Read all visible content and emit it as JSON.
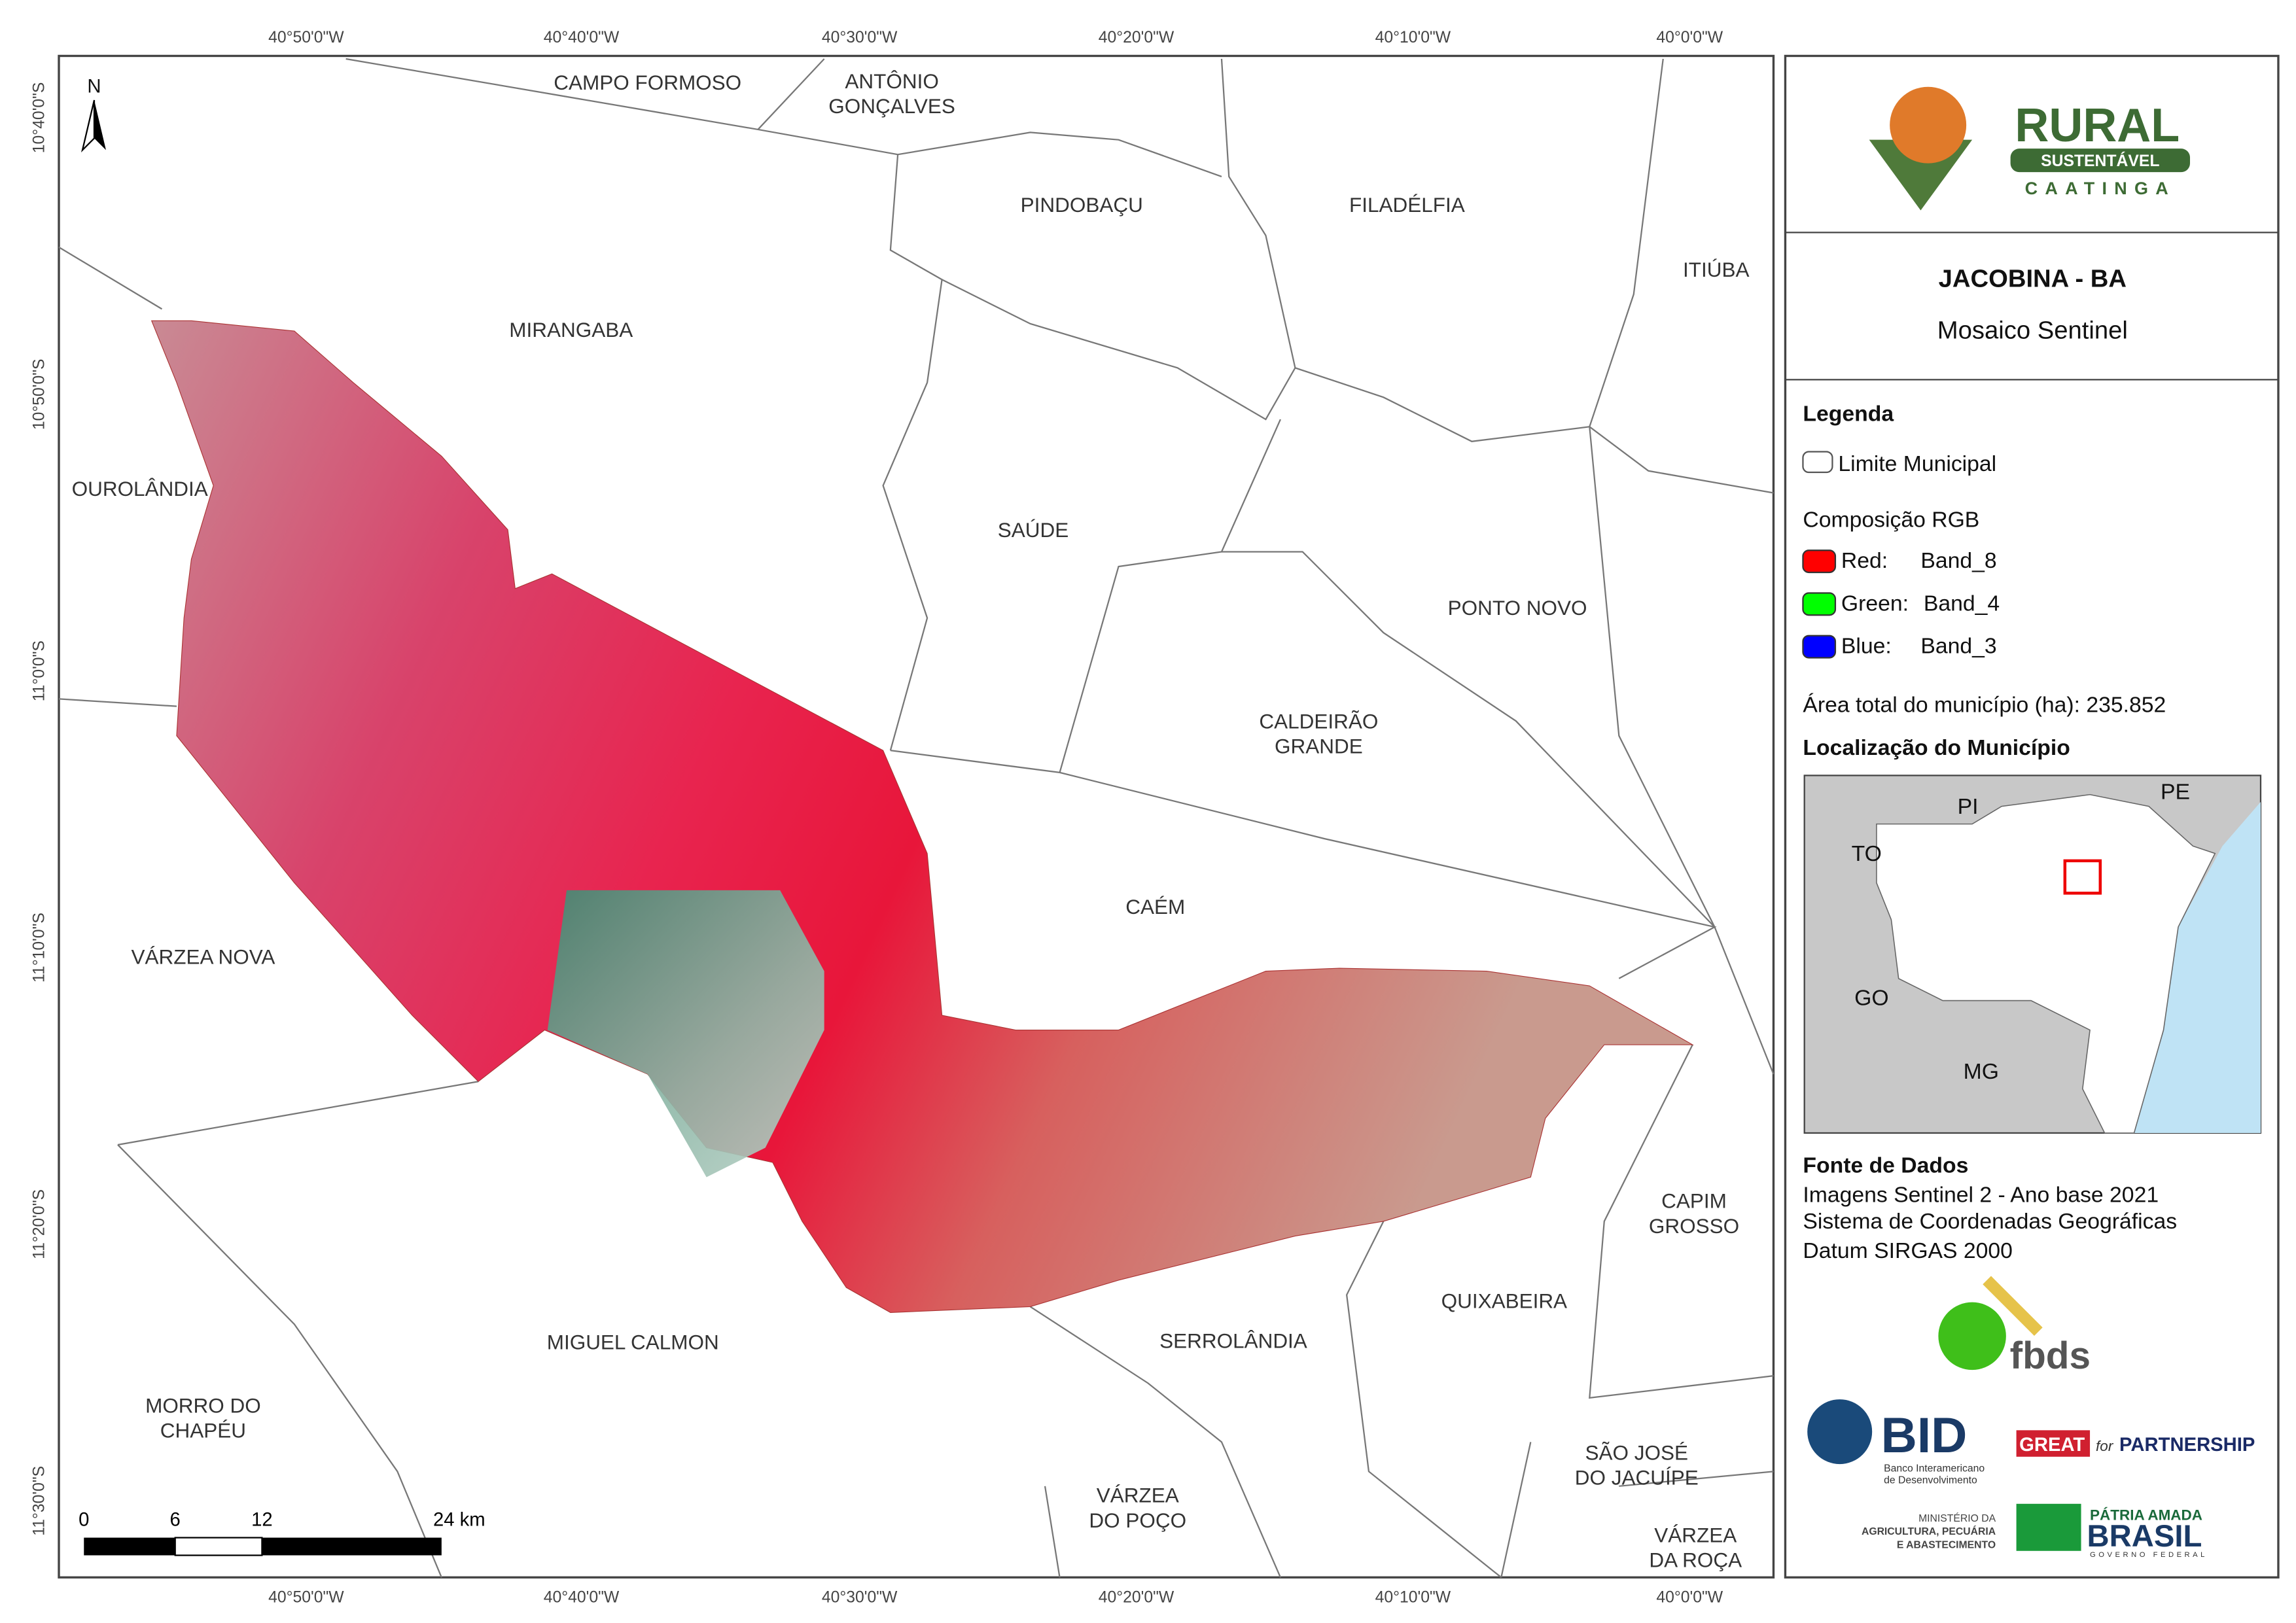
{
  "map": {
    "north": "N",
    "coords_top": [
      "40°50'0\"W",
      "40°40'0\"W",
      "40°30'0\"W",
      "40°20'0\"W",
      "40°10'0\"W",
      "40°0'0\"W"
    ],
    "coords_left": [
      "10°40'0\"S",
      "10°50'0\"S",
      "11°0'0\"S",
      "11°10'0\"S",
      "11°20'0\"S",
      "11°30'0\"S"
    ],
    "municipalities": [
      [
        "CAMPO FORMOSO"
      ],
      [
        "ANTÔNIO",
        "GONÇALVES"
      ],
      [
        "PINDOBAÇU"
      ],
      [
        "FILADÉLFIA"
      ],
      [
        "ITIÚBA"
      ],
      [
        "MIRANGABA"
      ],
      [
        "OUROLÂNDIA"
      ],
      [
        "SAÚDE"
      ],
      [
        "PONTO NOVO"
      ],
      [
        "CALDEIRÃO",
        "GRANDE"
      ],
      [
        "CAÉM"
      ],
      [
        "VÁRZEA NOVA"
      ],
      [
        "CAPIM",
        "GROSSO"
      ],
      [
        "QUIXABEIRA"
      ],
      [
        "MIGUEL CALMON"
      ],
      [
        "SERROLÂNDIA"
      ],
      [
        "MORRO DO",
        "CHAPÉU"
      ],
      [
        "SÃO JOSÉ",
        "DO JACUÍPE"
      ],
      [
        "VÁRZEA",
        "DO POÇO"
      ],
      [
        "VÁRZEA",
        "DA ROÇA"
      ]
    ],
    "scale": [
      "0",
      "6",
      "12",
      "24 km"
    ]
  },
  "sidebar": {
    "logo": [
      "RURAL",
      "SUSTENTÁVEL",
      "CAATINGA"
    ],
    "title": "JACOBINA - BA",
    "subtitle": "Mosaico Sentinel",
    "legend_title": "Legenda",
    "legend_boundary": "Limite Municipal",
    "rgb_title": "Composição RGB",
    "bands": [
      {
        "name": "Red:",
        "band": "Band_8",
        "color": "#ff0000"
      },
      {
        "name": "Green:",
        "band": "Band_4",
        "color": "#00ff00"
      },
      {
        "name": "Blue:",
        "band": "Band_3",
        "color": "#0000ff"
      }
    ],
    "area": "Área total do município (ha): 235.852",
    "location_title": "Localização do Município",
    "inset_labels": [
      "PI",
      "PE",
      "TO",
      "GO",
      "MG"
    ],
    "source_title": "Fonte de Dados",
    "source_lines": [
      "Imagens Sentinel 2 - Ano base 2021",
      "Sistema de Coordenadas Geográficas",
      "Datum SIRGAS 2000"
    ],
    "logos": {
      "fbds": "fbds",
      "bid": "BID",
      "bid_sub": [
        "Banco Interamericano",
        "de Desenvolvimento"
      ],
      "great": "GREAT",
      "partnership": "PARTNERSHIP",
      "for": "for",
      "ministry": [
        "MINISTÉRIO DA",
        "AGRICULTURA, PECUÁRIA",
        "E ABASTECIMENTO"
      ],
      "brasil": [
        "PÁTRIA AMADA",
        "BRASIL",
        "GOVERNO FEDERAL"
      ]
    }
  }
}
